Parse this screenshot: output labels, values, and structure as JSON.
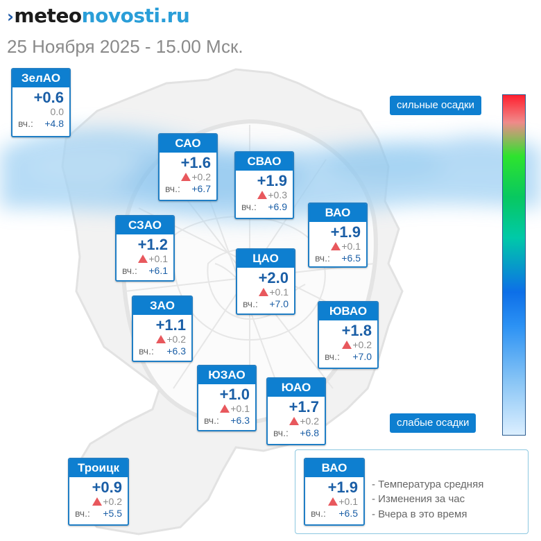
{
  "brand": {
    "mark": "›",
    "part1": "meteo",
    "part2": "novosti.ru"
  },
  "subtitle": "25 Ноября 2025 - 15.00 Мск.",
  "yest_label": "вч.:",
  "colors": {
    "card_header": "#0e7fd0",
    "temp_text": "#1a5ea6",
    "up_arrow": "#e8585d"
  },
  "districts": [
    {
      "name": "ЗелАО",
      "temp": "+0.6",
      "delta": "0.0",
      "delta_dir": "none",
      "yesterday": "+4.8"
    },
    {
      "name": "САО",
      "temp": "+1.6",
      "delta": "+0.2",
      "delta_dir": "up",
      "yesterday": "+6.7"
    },
    {
      "name": "СВАО",
      "temp": "+1.9",
      "delta": "+0.3",
      "delta_dir": "up",
      "yesterday": "+6.9"
    },
    {
      "name": "ВАО",
      "temp": "+1.9",
      "delta": "+0.1",
      "delta_dir": "up",
      "yesterday": "+6.5"
    },
    {
      "name": "СЗАО",
      "temp": "+1.2",
      "delta": "+0.1",
      "delta_dir": "up",
      "yesterday": "+6.1"
    },
    {
      "name": "ЦАО",
      "temp": "+2.0",
      "delta": "+0.1",
      "delta_dir": "up",
      "yesterday": "+7.0"
    },
    {
      "name": "ЗАО",
      "temp": "+1.1",
      "delta": "+0.2",
      "delta_dir": "up",
      "yesterday": "+6.3"
    },
    {
      "name": "ЮВАО",
      "temp": "+1.8",
      "delta": "+0.2",
      "delta_dir": "up",
      "yesterday": "+7.0"
    },
    {
      "name": "ЮЗАО",
      "temp": "+1.0",
      "delta": "+0.1",
      "delta_dir": "up",
      "yesterday": "+6.3"
    },
    {
      "name": "ЮАО",
      "temp": "+1.7",
      "delta": "+0.2",
      "delta_dir": "up",
      "yesterday": "+6.8"
    },
    {
      "name": "Троицк",
      "temp": "+0.9",
      "delta": "+0.2",
      "delta_dir": "up",
      "yesterday": "+5.5"
    }
  ],
  "precip_scale": {
    "top_label": "сильные осадки",
    "bottom_label": "слабые осадки"
  },
  "legend": {
    "sample": {
      "name": "ВАО",
      "temp": "+1.9",
      "delta": "+0.1",
      "yesterday": "+6.5"
    },
    "line_temp": "- Температура средняя",
    "line_change": "- Изменения за час",
    "line_yesterday": "- Вчера в это время"
  }
}
